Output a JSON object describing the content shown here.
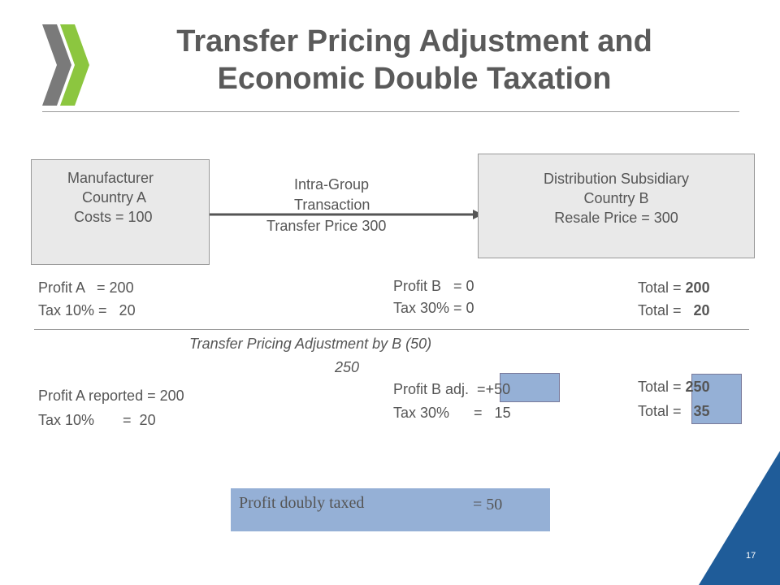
{
  "header": {
    "title_lines": [
      "Transfer Pricing Adjustment and",
      "Economic Double Taxation"
    ]
  },
  "box_a": {
    "lines": [
      "Manufacturer",
      "Country A",
      "Costs = 100"
    ]
  },
  "box_b": {
    "lines": [
      "Distribution Subsidiary",
      "Country B",
      "Resale Price = 300"
    ]
  },
  "arrow": {
    "lines": [
      "Intra-Group",
      "Transaction",
      "Transfer Price 300"
    ]
  },
  "row1": {
    "a": [
      "Profit A   = 200",
      "Tax 10% =   20"
    ],
    "b": [
      "Profit B   = 0",
      "Tax 30% = 0"
    ],
    "totals": [
      {
        "label": "Total = ",
        "value": "200"
      },
      {
        "label": "Total =   ",
        "value": "20"
      }
    ]
  },
  "adjustment": {
    "lines": [
      "Transfer Pricing Adjustment by B (50)",
      "250"
    ]
  },
  "row2": {
    "a": [
      "Profit A reported = 200",
      "Tax 10%       =  20"
    ],
    "b_profit": {
      "label": "Profit B adj.  =",
      "value": "+50"
    },
    "b_tax": "Tax 30%      =   15",
    "totals": [
      {
        "label": "Total = ",
        "value": "250"
      },
      {
        "label": "Total =   ",
        "value": "35"
      }
    ]
  },
  "result": {
    "label": "Profit doubly taxed",
    "value": "= 50"
  },
  "page_number": "17"
}
